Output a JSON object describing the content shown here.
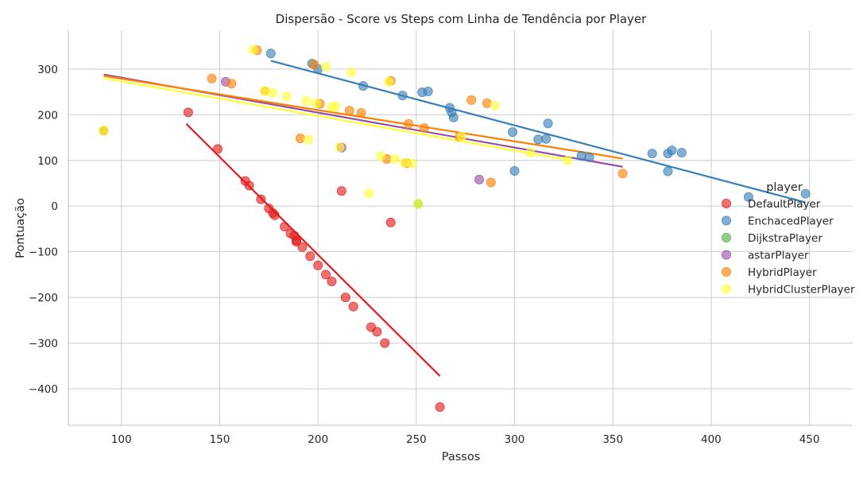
{
  "chart_data": {
    "type": "scatter",
    "title": "Dispersão - Score vs Steps com Linha de Tendência por Player",
    "xlabel": "Passos",
    "ylabel": "Pontuação",
    "xlim": [
      73,
      1000
    ],
    "xlim_note": "",
    "x_range": [
      73,
      472
    ],
    "ylim": [
      -480,
      385
    ],
    "xticks": [
      100,
      150,
      200,
      250,
      300,
      350,
      400,
      450
    ],
    "yticks": [
      -400,
      -300,
      -200,
      -100,
      0,
      100,
      200,
      300
    ],
    "grid": true,
    "legend": {
      "title": "player",
      "placement": "right"
    },
    "series": [
      {
        "name": "DefaultPlayer",
        "color": "#e41a1c",
        "points": [
          [
            134,
            205
          ],
          [
            149,
            125
          ],
          [
            163,
            55
          ],
          [
            165,
            45
          ],
          [
            171,
            15
          ],
          [
            175,
            -5
          ],
          [
            177,
            -15
          ],
          [
            178,
            -20
          ],
          [
            183,
            -45
          ],
          [
            186,
            -60
          ],
          [
            188,
            -65
          ],
          [
            189,
            -75
          ],
          [
            189,
            -78
          ],
          [
            192,
            -90
          ],
          [
            196,
            -110
          ],
          [
            200,
            -130
          ],
          [
            204,
            -150
          ],
          [
            207,
            -165
          ],
          [
            214,
            -200
          ],
          [
            218,
            -220
          ],
          [
            227,
            -265
          ],
          [
            230,
            -275
          ],
          [
            234,
            -300
          ],
          [
            212,
            33
          ],
          [
            237,
            -36
          ],
          [
            262,
            -440
          ]
        ],
        "trend": [
          [
            133,
            180
          ],
          [
            262,
            -372
          ]
        ]
      },
      {
        "name": "EnchacedPlayer",
        "color": "#377eb8",
        "points": [
          [
            176,
            334
          ],
          [
            197,
            312
          ],
          [
            200,
            300
          ],
          [
            223,
            263
          ],
          [
            243,
            242
          ],
          [
            253,
            249
          ],
          [
            256,
            251
          ],
          [
            267,
            215
          ],
          [
            268,
            205
          ],
          [
            269,
            194
          ],
          [
            299,
            162
          ],
          [
            300,
            77
          ],
          [
            312,
            146
          ],
          [
            316,
            147
          ],
          [
            317,
            181
          ],
          [
            334,
            110
          ],
          [
            338,
            107
          ],
          [
            370,
            115
          ],
          [
            378,
            115
          ],
          [
            378,
            76
          ],
          [
            380,
            122
          ],
          [
            385,
            117
          ],
          [
            419,
            20
          ],
          [
            448,
            27
          ]
        ],
        "trend": [
          [
            176,
            318
          ],
          [
            448,
            8
          ]
        ]
      },
      {
        "name": "DijkstraPlayer",
        "color": "#4daf4a",
        "points": [
          [
            91,
            165
          ],
          [
            251,
            5
          ]
        ],
        "trend": []
      },
      {
        "name": "astarPlayer",
        "color": "#984ea3",
        "points": [
          [
            153,
            272
          ],
          [
            212,
            128
          ],
          [
            282,
            58
          ]
        ],
        "trend": [
          [
            91,
            288
          ],
          [
            355,
            86
          ]
        ]
      },
      {
        "name": "HybridPlayer",
        "color": "#ff7f00",
        "points": [
          [
            91,
            165
          ],
          [
            146,
            279
          ],
          [
            156,
            268
          ],
          [
            169,
            341
          ],
          [
            173,
            252
          ],
          [
            191,
            148
          ],
          [
            198,
            310
          ],
          [
            201,
            224
          ],
          [
            216,
            209
          ],
          [
            222,
            204
          ],
          [
            235,
            103
          ],
          [
            237,
            274
          ],
          [
            245,
            94
          ],
          [
            246,
            180
          ],
          [
            254,
            171
          ],
          [
            272,
            152
          ],
          [
            278,
            232
          ],
          [
            286,
            225
          ],
          [
            288,
            52
          ],
          [
            355,
            71
          ]
        ],
        "trend": [
          [
            91,
            285
          ],
          [
            355,
            104
          ]
        ]
      },
      {
        "name": "HybridClusterPlayer",
        "color": "#ffff33",
        "points": [
          [
            167,
            342
          ],
          [
            177,
            248
          ],
          [
            184,
            240
          ],
          [
            194,
            230
          ],
          [
            195,
            145
          ],
          [
            199,
            225
          ],
          [
            204,
            305
          ],
          [
            207,
            217
          ],
          [
            209,
            218
          ],
          [
            211,
            129
          ],
          [
            217,
            293
          ],
          [
            226,
            28
          ],
          [
            232,
            109
          ],
          [
            236,
            272
          ],
          [
            239,
            103
          ],
          [
            244,
            95
          ],
          [
            248,
            93
          ],
          [
            251,
            5
          ],
          [
            273,
            152
          ],
          [
            290,
            220
          ],
          [
            308,
            117
          ],
          [
            327,
            100
          ],
          [
            91,
            165
          ],
          [
            173,
            252
          ]
        ],
        "trend": [
          [
            91,
            280
          ],
          [
            327,
            101
          ]
        ]
      }
    ]
  }
}
